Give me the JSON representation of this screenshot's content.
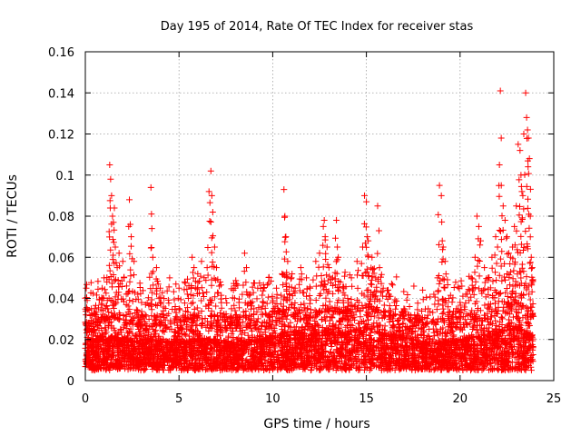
{
  "chart_data": {
    "type": "scatter",
    "title": "Day 195 of 2014, Rate Of TEC Index for receiver stas",
    "xlabel": "GPS time / hours",
    "ylabel": "ROTI / TECUs",
    "xlim": [
      0,
      25
    ],
    "ylim": [
      0,
      0.16
    ],
    "grid": true,
    "legend": "none",
    "x_ticks": [
      0,
      5,
      10,
      15,
      20,
      25
    ],
    "x_tick_labels": [
      "0",
      "5",
      "10",
      "15",
      "20",
      "25"
    ],
    "y_ticks": [
      0,
      0.02,
      0.04,
      0.06,
      0.08,
      0.1,
      0.12,
      0.14,
      0.16
    ],
    "y_tick_labels": [
      "0",
      "0.02",
      "0.04",
      "0.06",
      "0.08",
      "0.1",
      "0.12",
      "0.14",
      "0.16"
    ],
    "marker": "plus",
    "color": "#ff0000",
    "series": [
      {
        "name": "ROTI",
        "points": [
          [
            0.05,
            0.045
          ],
          [
            0.1,
            0.039
          ],
          [
            0.2,
            0.028
          ],
          [
            0.35,
            0.032
          ],
          [
            0.5,
            0.025
          ],
          [
            0.7,
            0.03
          ],
          [
            0.9,
            0.045
          ],
          [
            1.0,
            0.05
          ],
          [
            1.15,
            0.048
          ],
          [
            1.3,
            0.105
          ],
          [
            1.35,
            0.098
          ],
          [
            1.4,
            0.09
          ],
          [
            1.45,
            0.08
          ],
          [
            1.5,
            0.077
          ],
          [
            1.55,
            0.084
          ],
          [
            1.6,
            0.065
          ],
          [
            1.7,
            0.055
          ],
          [
            1.8,
            0.062
          ],
          [
            2.0,
            0.058
          ],
          [
            2.2,
            0.046
          ],
          [
            2.35,
            0.088
          ],
          [
            2.4,
            0.076
          ],
          [
            2.45,
            0.07
          ],
          [
            2.6,
            0.058
          ],
          [
            2.8,
            0.042
          ],
          [
            3.0,
            0.038
          ],
          [
            3.2,
            0.032
          ],
          [
            3.5,
            0.094
          ],
          [
            3.55,
            0.074
          ],
          [
            3.6,
            0.06
          ],
          [
            3.8,
            0.055
          ],
          [
            4.0,
            0.045
          ],
          [
            4.2,
            0.04
          ],
          [
            4.5,
            0.05
          ],
          [
            4.8,
            0.036
          ],
          [
            5.0,
            0.045
          ],
          [
            5.3,
            0.048
          ],
          [
            5.5,
            0.04
          ],
          [
            5.7,
            0.06
          ],
          [
            5.8,
            0.055
          ],
          [
            6.0,
            0.052
          ],
          [
            6.2,
            0.058
          ],
          [
            6.5,
            0.055
          ],
          [
            6.6,
            0.092
          ],
          [
            6.7,
            0.102
          ],
          [
            6.75,
            0.09
          ],
          [
            6.8,
            0.082
          ],
          [
            6.9,
            0.065
          ],
          [
            7.0,
            0.055
          ],
          [
            7.2,
            0.048
          ],
          [
            7.5,
            0.04
          ],
          [
            7.8,
            0.035
          ],
          [
            8.0,
            0.045
          ],
          [
            8.2,
            0.038
          ],
          [
            8.5,
            0.062
          ],
          [
            8.6,
            0.055
          ],
          [
            8.8,
            0.042
          ],
          [
            9.0,
            0.035
          ],
          [
            9.2,
            0.045
          ],
          [
            9.5,
            0.038
          ],
          [
            9.8,
            0.032
          ],
          [
            10.0,
            0.038
          ],
          [
            10.2,
            0.045
          ],
          [
            10.5,
            0.052
          ],
          [
            10.6,
            0.093
          ],
          [
            10.65,
            0.08
          ],
          [
            10.7,
            0.07
          ],
          [
            10.8,
            0.058
          ],
          [
            11.0,
            0.05
          ],
          [
            11.2,
            0.045
          ],
          [
            11.5,
            0.055
          ],
          [
            11.8,
            0.05
          ],
          [
            12.0,
            0.045
          ],
          [
            12.3,
            0.058
          ],
          [
            12.5,
            0.062
          ],
          [
            12.7,
            0.075
          ],
          [
            12.75,
            0.078
          ],
          [
            12.8,
            0.07
          ],
          [
            12.9,
            0.065
          ],
          [
            13.0,
            0.055
          ],
          [
            13.2,
            0.05
          ],
          [
            13.4,
            0.078
          ],
          [
            13.45,
            0.065
          ],
          [
            13.5,
            0.06
          ],
          [
            13.8,
            0.045
          ],
          [
            14.0,
            0.04
          ],
          [
            14.2,
            0.05
          ],
          [
            14.5,
            0.058
          ],
          [
            14.8,
            0.065
          ],
          [
            14.9,
            0.09
          ],
          [
            15.0,
            0.087
          ],
          [
            15.05,
            0.07
          ],
          [
            15.1,
            0.068
          ],
          [
            15.3,
            0.06
          ],
          [
            15.5,
            0.05
          ],
          [
            15.6,
            0.085
          ],
          [
            15.7,
            0.055
          ],
          [
            15.9,
            0.045
          ],
          [
            16.2,
            0.042
          ],
          [
            16.5,
            0.038
          ],
          [
            16.8,
            0.032
          ],
          [
            17.0,
            0.035
          ],
          [
            17.3,
            0.036
          ],
          [
            17.6,
            0.03
          ],
          [
            18.0,
            0.028
          ],
          [
            18.3,
            0.035
          ],
          [
            18.6,
            0.042
          ],
          [
            18.8,
            0.05
          ],
          [
            18.9,
            0.095
          ],
          [
            19.0,
            0.09
          ],
          [
            19.05,
            0.068
          ],
          [
            19.1,
            0.065
          ],
          [
            19.2,
            0.058
          ],
          [
            19.4,
            0.04
          ],
          [
            19.6,
            0.032
          ],
          [
            19.8,
            0.035
          ],
          [
            20.0,
            0.038
          ],
          [
            20.3,
            0.042
          ],
          [
            20.6,
            0.05
          ],
          [
            20.8,
            0.06
          ],
          [
            20.9,
            0.08
          ],
          [
            21.0,
            0.075
          ],
          [
            21.1,
            0.068
          ],
          [
            21.3,
            0.055
          ],
          [
            21.5,
            0.05
          ],
          [
            21.7,
            0.06
          ],
          [
            21.9,
            0.07
          ],
          [
            22.0,
            0.065
          ],
          [
            22.1,
            0.105
          ],
          [
            22.15,
            0.141
          ],
          [
            22.2,
            0.095
          ],
          [
            22.3,
            0.085
          ],
          [
            22.4,
            0.078
          ],
          [
            22.5,
            0.07
          ],
          [
            22.6,
            0.062
          ],
          [
            22.7,
            0.06
          ],
          [
            22.8,
            0.065
          ],
          [
            22.9,
            0.075
          ],
          [
            23.0,
            0.085
          ],
          [
            23.1,
            0.115
          ],
          [
            23.2,
            0.112
          ],
          [
            23.25,
            0.1
          ],
          [
            23.3,
            0.092
          ],
          [
            23.35,
            0.09
          ],
          [
            23.4,
            0.12
          ],
          [
            23.5,
            0.14
          ],
          [
            23.55,
            0.128
          ],
          [
            23.6,
            0.122
          ],
          [
            23.65,
            0.118
          ],
          [
            23.7,
            0.108
          ],
          [
            23.75,
            0.08
          ],
          [
            23.8,
            0.06
          ],
          [
            23.85,
            0.055
          ]
        ],
        "band_profile": [
          [
            0.0,
            0.018
          ],
          [
            1.0,
            0.02
          ],
          [
            2.0,
            0.019
          ],
          [
            3.0,
            0.018
          ],
          [
            4.0,
            0.018
          ],
          [
            5.0,
            0.017
          ],
          [
            6.0,
            0.019
          ],
          [
            7.0,
            0.018
          ],
          [
            8.0,
            0.017
          ],
          [
            9.0,
            0.018
          ],
          [
            10.0,
            0.02
          ],
          [
            11.0,
            0.022
          ],
          [
            12.0,
            0.021
          ],
          [
            13.0,
            0.022
          ],
          [
            14.0,
            0.022
          ],
          [
            15.0,
            0.024
          ],
          [
            16.0,
            0.021
          ],
          [
            17.0,
            0.02
          ],
          [
            18.0,
            0.017
          ],
          [
            19.0,
            0.017
          ],
          [
            20.0,
            0.018
          ],
          [
            21.0,
            0.02
          ],
          [
            22.0,
            0.022
          ],
          [
            23.0,
            0.025
          ],
          [
            23.9,
            0.02
          ]
        ]
      }
    ]
  }
}
